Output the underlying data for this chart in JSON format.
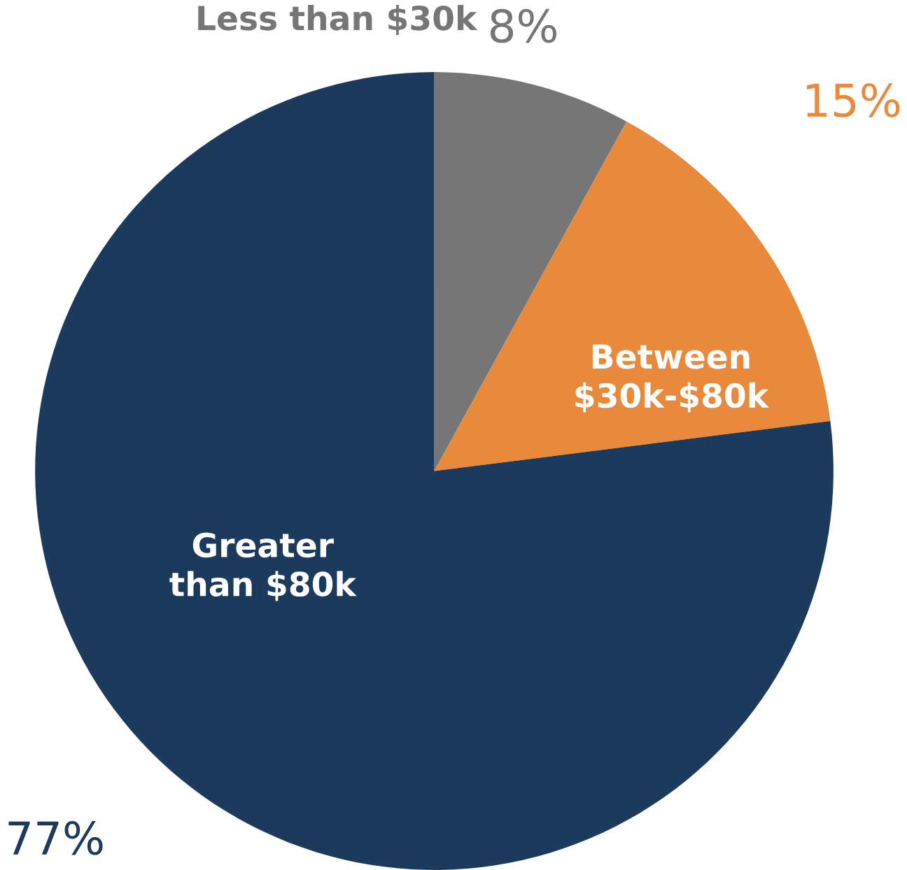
{
  "chart_data": {
    "type": "pie",
    "categories": [
      "Less than $30k",
      "Between $30k-$80k",
      "Greater than $80k"
    ],
    "values": [
      8,
      15,
      77
    ],
    "value_labels": [
      "8%",
      "15%",
      "77%"
    ],
    "colors": [
      "#767676",
      "#e8893c",
      "#1b3a5c"
    ]
  }
}
